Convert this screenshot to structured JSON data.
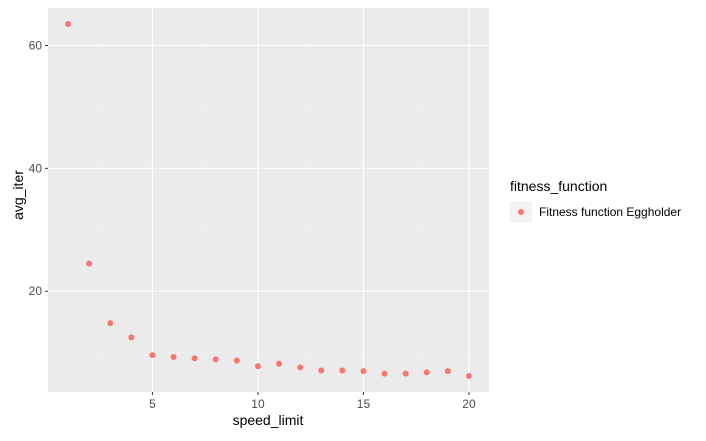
{
  "chart_data": {
    "type": "scatter",
    "xlabel": "speed_limit",
    "ylabel": "avg_iter",
    "xlim": [
      0.05,
      20.95
    ],
    "ylim": [
      3.6,
      66.1
    ],
    "x_ticks": [
      5,
      10,
      15,
      20
    ],
    "x_tick_labels": [
      "5",
      "10",
      "15",
      "20"
    ],
    "y_ticks": [
      20,
      40,
      60
    ],
    "y_tick_labels": [
      "20",
      "40",
      "60"
    ],
    "grid": true,
    "legend_position": "right",
    "legend_title": "fitness_function",
    "series": [
      {
        "name": "Fitness function Eggholder",
        "color": "#F8766D",
        "x": [
          1,
          2,
          3,
          4,
          5,
          6,
          7,
          8,
          9,
          10,
          11,
          12,
          13,
          14,
          15,
          16,
          17,
          18,
          19,
          20
        ],
        "y": [
          63.5,
          24.5,
          14.8,
          12.5,
          9.6,
          9.3,
          9.1,
          8.9,
          8.7,
          7.8,
          8.2,
          7.6,
          7.1,
          7.1,
          7.0,
          6.6,
          6.6,
          6.8,
          7.0,
          6.2
        ]
      }
    ]
  },
  "colors": {
    "panel_background": "#EBEBEB",
    "grid_major": "#FFFFFF",
    "grid_minor": "#F2F2F2",
    "point": "#F8766D"
  }
}
